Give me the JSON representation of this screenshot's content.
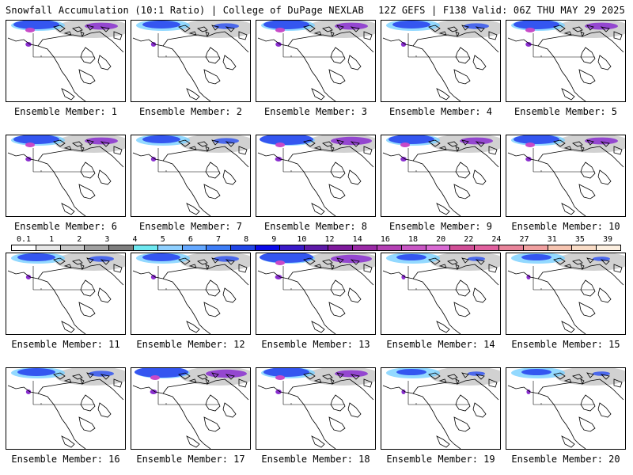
{
  "header": {
    "left_title": "Snowfall Accumulation (10:1 Ratio) | College of DuPage NEXLAB",
    "right_title": "12Z GEFS | F138 Valid: 06Z THU MAY 29 2025"
  },
  "panels": [
    {
      "label": "Ensemble Member: 1",
      "intensity": 3
    },
    {
      "label": "Ensemble Member: 2",
      "intensity": 2
    },
    {
      "label": "Ensemble Member: 3",
      "intensity": 3
    },
    {
      "label": "Ensemble Member: 4",
      "intensity": 2
    },
    {
      "label": "Ensemble Member: 5",
      "intensity": 3
    },
    {
      "label": "Ensemble Member: 6",
      "intensity": 3
    },
    {
      "label": "Ensemble Member: 7",
      "intensity": 2
    },
    {
      "label": "Ensemble Member: 8",
      "intensity": 4
    },
    {
      "label": "Ensemble Member: 9",
      "intensity": 3
    },
    {
      "label": "Ensemble Member: 10",
      "intensity": 3
    },
    {
      "label": "Ensemble Member: 11",
      "intensity": 2
    },
    {
      "label": "Ensemble Member: 12",
      "intensity": 2
    },
    {
      "label": "Ensemble Member: 13",
      "intensity": 4
    },
    {
      "label": "Ensemble Member: 14",
      "intensity": 1
    },
    {
      "label": "Ensemble Member: 15",
      "intensity": 1
    },
    {
      "label": "Ensemble Member: 16",
      "intensity": 2
    },
    {
      "label": "Ensemble Member: 17",
      "intensity": 4
    },
    {
      "label": "Ensemble Member: 18",
      "intensity": 3
    },
    {
      "label": "Ensemble Member: 19",
      "intensity": 1
    },
    {
      "label": "Ensemble Member: 20",
      "intensity": 1
    }
  ],
  "legend": {
    "labels": [
      "0.1",
      "1",
      "2",
      "3",
      "4",
      "5",
      "6",
      "7",
      "8",
      "9",
      "10",
      "12",
      "14",
      "16",
      "18",
      "20",
      "22",
      "24",
      "27",
      "31",
      "35",
      "39"
    ],
    "colors": [
      "#ffffff",
      "#e6e6e6",
      "#c8c8c8",
      "#a0a0a0",
      "#7e7e7e",
      "#6ee8f0",
      "#8fd0ff",
      "#64a8ff",
      "#3e7df5",
      "#2146e6",
      "#0a0ae8",
      "#3a1ac8",
      "#5e1aa8",
      "#7e1a9c",
      "#9a2aa6",
      "#b440b4",
      "#c856c4",
      "#d86ad2",
      "#d04e96",
      "#e0609e",
      "#e8849a",
      "#f0a0a0",
      "#f6c4b0",
      "#f9dcc6",
      "#fcefe0"
    ]
  },
  "colors": {
    "snow_blue": "#3456f0",
    "snow_cyan": "#78cfff",
    "snow_purple": "#8a2fd0",
    "snow_magenta": "#c84ac8",
    "snow_gray": "#9a9a9a"
  }
}
